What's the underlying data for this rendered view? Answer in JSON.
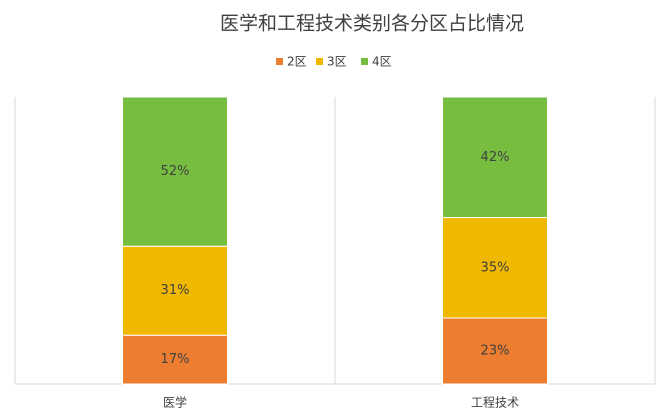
{
  "chart_data": {
    "type": "stacked_bar_100",
    "title": "医学和工程技术类别各分区占比情况",
    "categories": [
      "医学",
      "工程技术"
    ],
    "series": [
      {
        "name": "2区",
        "color": "#ed7d31",
        "values": [
          17,
          23
        ],
        "value_labels": [
          "17%",
          "23%"
        ]
      },
      {
        "name": "3区",
        "color": "#f0b800",
        "values": [
          31,
          35
        ],
        "value_labels": [
          "31%",
          "35%"
        ]
      },
      {
        "name": "4区",
        "color": "#77be40",
        "values": [
          52,
          42
        ],
        "value_labels": [
          "52%",
          "42%"
        ]
      }
    ],
    "legend": "top"
  }
}
